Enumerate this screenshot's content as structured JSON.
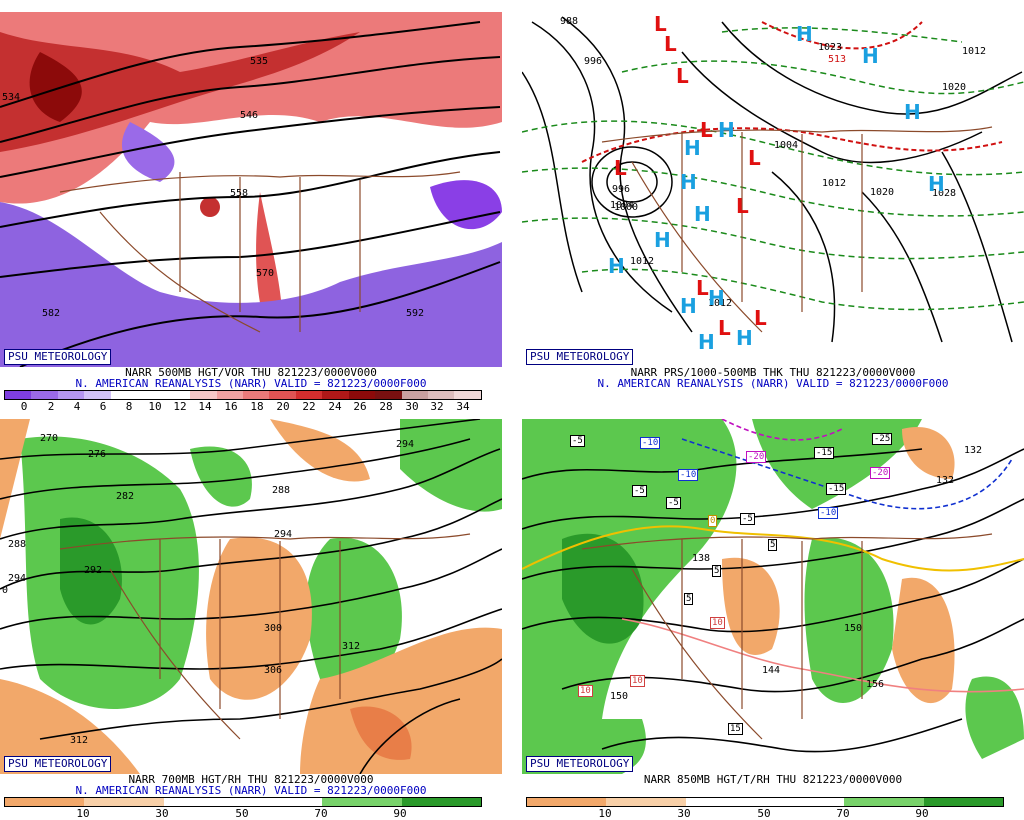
{
  "credit": "PSU METEOROLOGY",
  "panels": {
    "tl": {
      "line1": "NARR 500MB HGT/VOR THU 821223/0000V000",
      "line2": "N. AMERICAN REANALYSIS (NARR) VALID = 821223/0000F000",
      "colorbar": {
        "labels": [
          "0",
          "2",
          "4",
          "6",
          "8",
          "10",
          "12",
          "14",
          "16",
          "18",
          "20",
          "22",
          "24",
          "26",
          "28",
          "30",
          "32",
          "34"
        ],
        "colors": [
          "#7f3fe0",
          "#9a6ae8",
          "#b596f0",
          "#d2c2f7",
          "#ffffff",
          "#ffffff",
          "#ffffff",
          "#f6c7c7",
          "#f0a0a0",
          "#ea7a7a",
          "#e05454",
          "#d42e2e",
          "#b01818",
          "#8c0a0a",
          "#781010",
          "#c8a0a0",
          "#dcbcbc",
          "#f0d8d8"
        ]
      },
      "contour_labels": [
        "546",
        "558",
        "570",
        "582",
        "592",
        "534",
        "535"
      ]
    },
    "tr": {
      "line1": "NARR PRS/1000-500MB THK THU 821223/0000V000",
      "line2": "N. AMERICAN REANALYSIS (NARR) VALID = 821223/0000F000",
      "contour_labels": [
        "988",
        "996",
        "1004",
        "1012",
        "1020",
        "1028",
        "1004",
        "1012",
        "1020",
        "1023",
        "996",
        "1000",
        "1012",
        "513",
        "1012"
      ],
      "high_symbol": "H",
      "low_symbol": "L"
    },
    "bl": {
      "line1": "NARR 700MB HGT/RH THU 821223/0000V000",
      "line2": "N. AMERICAN REANALYSIS (NARR) VALID = 821223/0000F000",
      "colorbar": {
        "labels": [
          "10",
          "30",
          "50",
          "70",
          "90"
        ],
        "colors": [
          "#f2a86a",
          "#f8d0a8",
          "#ffffff",
          "#ffffff",
          "#78d26a",
          "#2a9a2a"
        ]
      },
      "contour_labels": [
        "270",
        "276",
        "282",
        "288",
        "294",
        "294",
        "300",
        "306",
        "312",
        "288",
        "292",
        "312",
        "0",
        "294"
      ]
    },
    "br": {
      "line1": "NARR 850MB HGT/T/RH THU 821223/0000V000",
      "colorbar": {
        "labels": [
          "10",
          "30",
          "50",
          "70",
          "90"
        ],
        "colors": [
          "#f2a86a",
          "#f8d0a8",
          "#ffffff",
          "#ffffff",
          "#78d26a",
          "#2a9a2a"
        ]
      },
      "temp_labels": [
        "-5",
        "-10",
        "-10",
        "-20",
        "-15",
        "-25",
        "-20",
        "-15",
        "-10",
        "-5",
        "-5",
        "-5",
        "5",
        "5",
        "5",
        "10",
        "10",
        "10",
        "15",
        "0"
      ],
      "contour_labels": [
        "132",
        "138",
        "144",
        "150",
        "156",
        "150",
        "132"
      ]
    }
  }
}
